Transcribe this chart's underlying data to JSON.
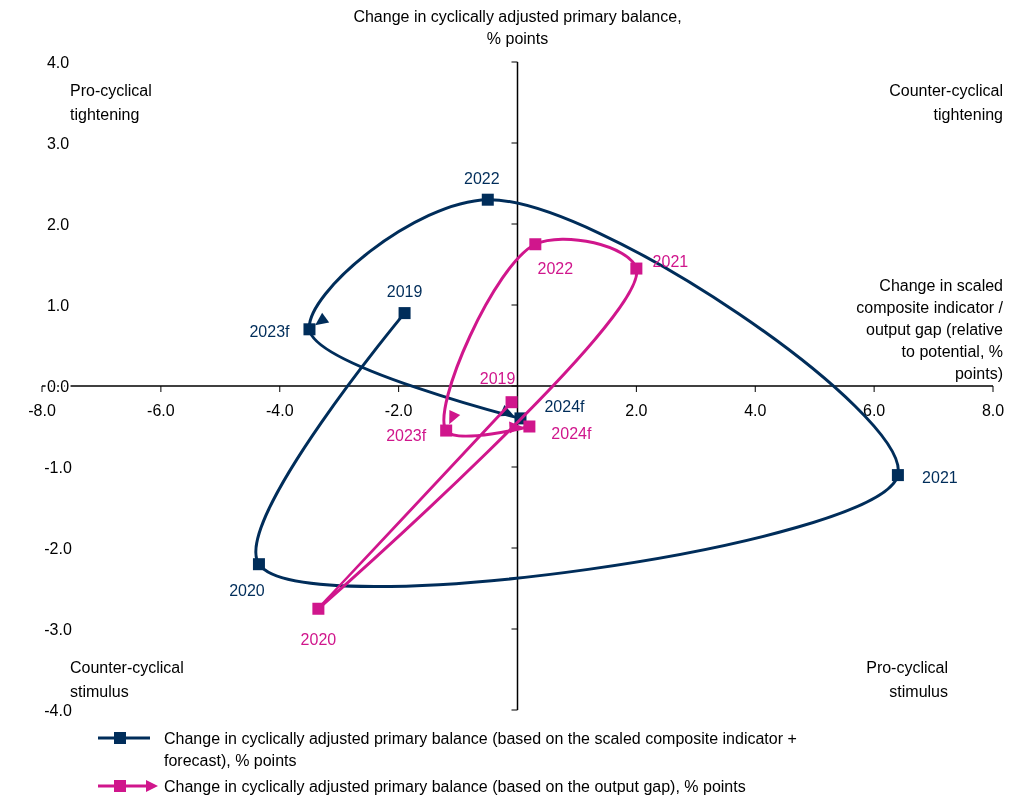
{
  "chart_data": {
    "type": "line",
    "xlabel": "Change in scaled composite indicator / output gap (relative to potential, % points)",
    "ylabel": "Change in cyclically adjusted primary balance, % points",
    "xlim": [
      -8,
      8
    ],
    "xticks": [
      {
        "value": -8,
        "label": "-8.0"
      },
      {
        "value": -6,
        "label": "-6.0"
      },
      {
        "value": -4,
        "label": "-4.0"
      },
      {
        "value": -2,
        "label": "-2.0"
      },
      {
        "value": 2,
        "label": "2.0"
      },
      {
        "value": 4,
        "label": "4.0"
      },
      {
        "value": 6,
        "label": "6.0"
      },
      {
        "value": 8,
        "label": "8.0"
      }
    ],
    "ylim": [
      -4,
      4
    ],
    "yticks": [
      {
        "value": -4,
        "label": "-4.0"
      },
      {
        "value": -3,
        "label": "-3.0"
      },
      {
        "value": -2,
        "label": "-2.0"
      },
      {
        "value": -1,
        "label": "-1.0"
      },
      {
        "value": 0,
        "label": "0.0"
      },
      {
        "value": 1,
        "label": "1.0"
      },
      {
        "value": 2,
        "label": "2.0"
      },
      {
        "value": 3,
        "label": "3.0"
      },
      {
        "value": 4,
        "label": "4.0"
      }
    ],
    "grid": false,
    "legend": "bottom",
    "marker": "square",
    "line_style": "solid",
    "annotations": [
      "Pro-cyclical tightening",
      "Counter-cyclical tightening",
      "Counter-cyclical stimulus",
      "Pro-cyclical stimulus",
      {
        "text": "2019",
        "x": -1.9,
        "y": 0.9
      },
      {
        "text": "2020",
        "x": -4.35,
        "y": -2.2
      },
      {
        "text": "2021",
        "x": 6.4,
        "y": -1.1
      },
      {
        "text": "2022",
        "x": -0.5,
        "y": 2.3
      },
      {
        "text": "2023f",
        "x": -3.5,
        "y": 0.7
      },
      {
        "text": "2024f",
        "x": 0.05,
        "y": -0.4
      },
      {
        "text": "2019",
        "x": -0.1,
        "y": -0.2
      },
      {
        "text": "2020",
        "x": -3.35,
        "y": -2.75
      },
      {
        "text": "2021",
        "x": 2.0,
        "y": 1.45
      },
      {
        "text": "2022",
        "x": 0.3,
        "y": 1.75
      },
      {
        "text": "2023f",
        "x": -1.2,
        "y": -0.55
      },
      {
        "text": "2024f",
        "x": 0.2,
        "y": -0.5
      }
    ],
    "series": [
      {
        "name": "Change in cyclically adjusted primary balance (based on the scaled composite indicator + forecast), % points",
        "color": "#002d5a",
        "x": [
          -1.9,
          -4.35,
          6.4,
          -0.5,
          -3.5,
          0.05
        ],
        "values": [
          0.9,
          -2.2,
          -1.1,
          2.3,
          0.7,
          -0.4
        ]
      },
      {
        "name": "Change in cyclically adjusted primary balance (based on the output gap), % points",
        "color": "#d0168c",
        "x": [
          -0.1,
          -3.35,
          2.0,
          0.3,
          -1.2,
          0.2
        ],
        "values": [
          -0.2,
          -2.75,
          1.45,
          1.75,
          -0.55,
          -0.5
        ]
      }
    ]
  }
}
